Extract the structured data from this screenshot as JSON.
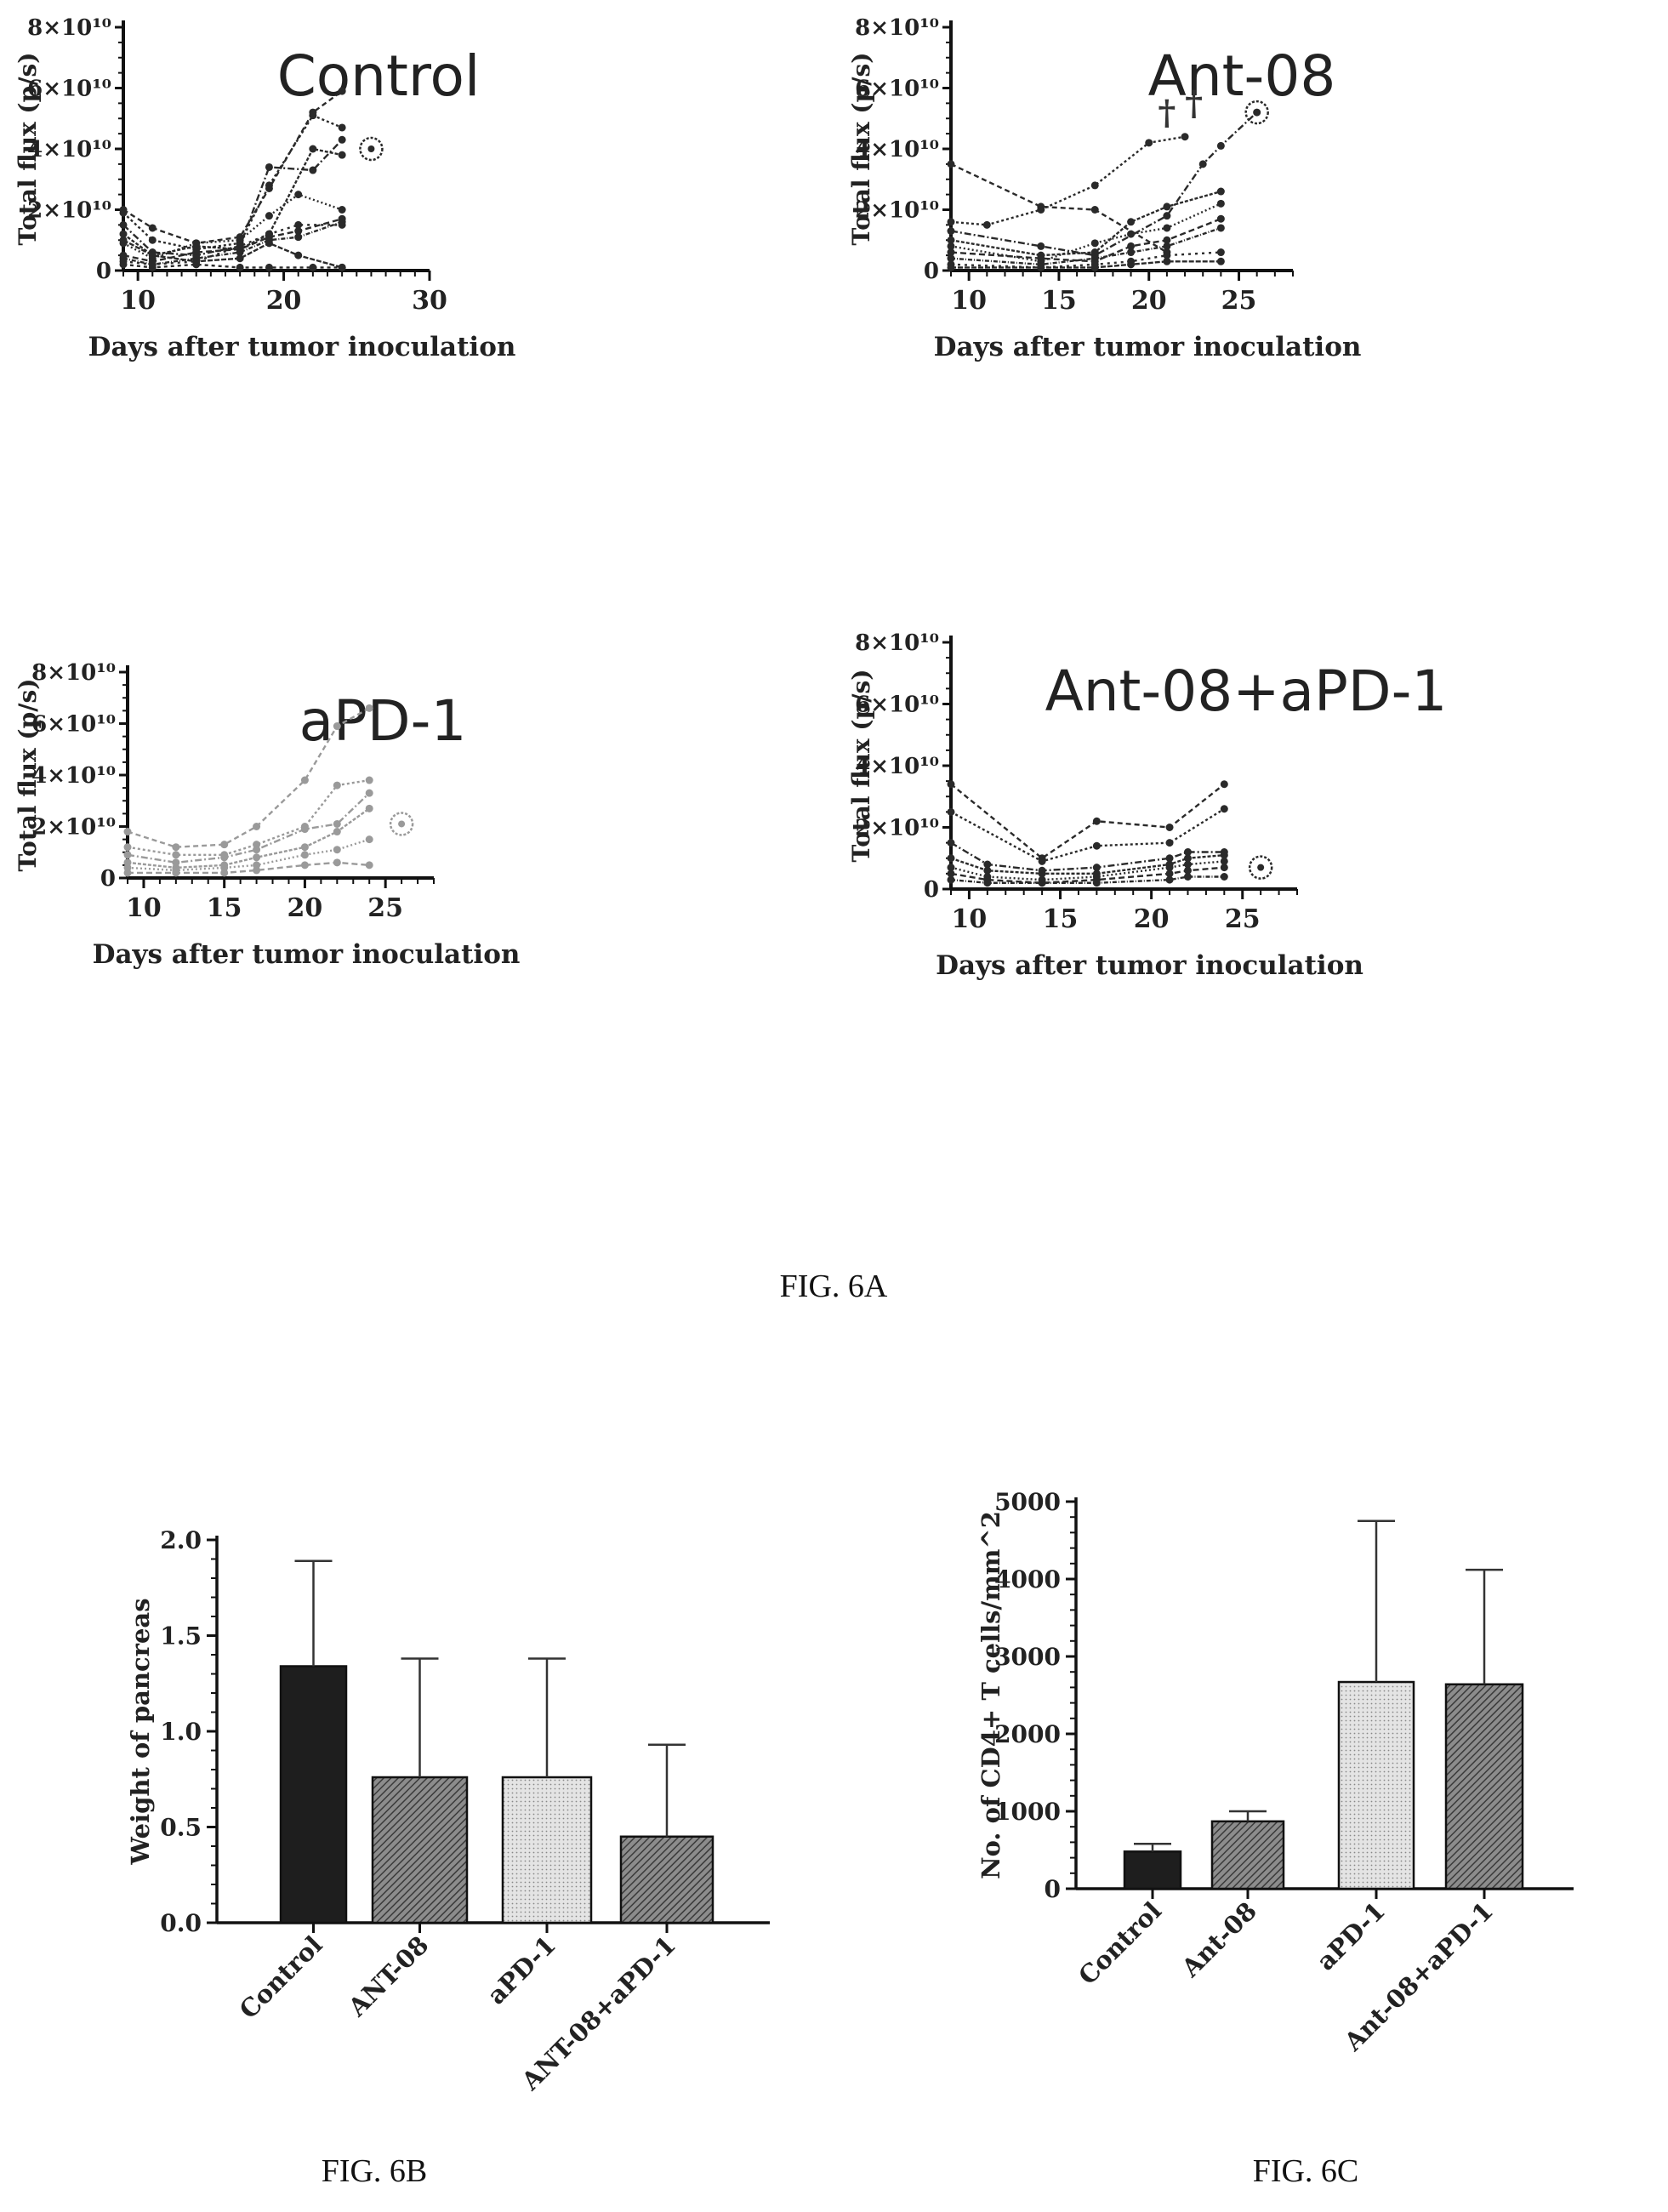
{
  "figure_captions": {
    "fig6a": "FIG. 6A",
    "fig6b": "FIG. 6B",
    "fig6c": "FIG. 6C"
  },
  "chart_data": [
    {
      "id": "control",
      "type": "line",
      "title": "Control",
      "xlabel": "Days after tumor inoculation",
      "ylabel": "Total flux (p/s)",
      "xlim": [
        9,
        30
      ],
      "ylim": [
        0,
        80000000000.0
      ],
      "xticks": [
        10,
        20,
        30
      ],
      "yticks": [
        {
          "v": 0,
          "label": "0"
        },
        {
          "v": 20000000000.0,
          "label": "2×10¹⁰"
        },
        {
          "v": 40000000000.0,
          "label": "4×10¹⁰"
        },
        {
          "v": 60000000000.0,
          "label": "6×10¹⁰"
        },
        {
          "v": 80000000000.0,
          "label": "8×10¹⁰"
        }
      ],
      "color": "#2a2a2a",
      "series": [
        {
          "x": [
            9,
            11,
            14,
            17,
            19,
            22,
            24
          ],
          "y": [
            20000000000.0,
            14000000000.0,
            9000000000.0,
            11000000000.0,
            27000000000.0,
            52000000000.0,
            59000000000.0
          ]
        },
        {
          "x": [
            9,
            11,
            14,
            17,
            19,
            22,
            24
          ],
          "y": [
            19000000000.0,
            10000000000.0,
            7000000000.0,
            9000000000.0,
            28000000000.0,
            51000000000.0,
            47000000000.0
          ]
        },
        {
          "x": [
            9,
            11,
            14,
            17,
            19,
            22,
            24
          ],
          "y": [
            15000000000.0,
            6000000000.0,
            5000000000.0,
            8000000000.0,
            34000000000.0,
            33000000000.0,
            43000000000.0
          ]
        },
        {
          "x": [
            9,
            11,
            14,
            17,
            19,
            22,
            24
          ],
          "y": [
            12000000000.0,
            5000000000.0,
            8000000000.0,
            7000000000.0,
            12000000000.0,
            40000000000.0,
            38000000000.0
          ]
        },
        {
          "x": [
            9,
            11,
            14,
            17,
            19,
            21,
            24
          ],
          "y": [
            9000000000.0,
            4000000000.0,
            9000000000.0,
            10000000000.0,
            18000000000.0,
            25000000000.0,
            20000000000.0
          ]
        },
        {
          "x": [
            9,
            11,
            14,
            17,
            19,
            21,
            24
          ],
          "y": [
            5000000000.0,
            3000000000.0,
            6000000000.0,
            7000000000.0,
            11000000000.0,
            13000000000.0,
            17000000000.0
          ]
        },
        {
          "x": [
            9,
            11,
            14,
            17,
            19,
            21,
            24
          ],
          "y": [
            4000000000.0,
            2000000000.0,
            4000000000.0,
            6000000000.0,
            10000000000.0,
            11000000000.0,
            16000000000.0
          ]
        },
        {
          "x": [
            9,
            11,
            14,
            17,
            19,
            21,
            24
          ],
          "y": [
            3000000000.0,
            2000000000.0,
            3000000000.0,
            8000000000.0,
            12000000000.0,
            15000000000.0,
            15000000000.0
          ]
        },
        {
          "x": [
            9,
            11,
            14,
            17,
            19,
            21,
            24
          ],
          "y": [
            10000000000.0,
            5000000000.0,
            3000000000.0,
            4000000000.0,
            9000000000.0,
            5000000000.0,
            1000000000.0
          ]
        },
        {
          "x": [
            9,
            11,
            14,
            17,
            19,
            22,
            24
          ],
          "y": [
            2000000000.0,
            1000000000.0,
            2000000000.0,
            1000000000.0,
            1000000000.0,
            1000000000.0,
            1000000000.0
          ]
        }
      ],
      "dead_marks": [],
      "circled": {
        "x": 26,
        "y": 40000000000.0
      }
    },
    {
      "id": "ant08",
      "type": "line",
      "title": "Ant-08",
      "xlabel": "Days after tumor inoculation",
      "ylabel": "Total flux (p/s)",
      "xlim": [
        9,
        28
      ],
      "ylim": [
        0,
        80000000000.0
      ],
      "xticks": [
        10,
        15,
        20,
        25
      ],
      "yticks": [
        {
          "v": 0,
          "label": "0"
        },
        {
          "v": 20000000000.0,
          "label": "2×10¹⁰"
        },
        {
          "v": 40000000000.0,
          "label": "4×10¹⁰"
        },
        {
          "v": 60000000000.0,
          "label": "6×10¹⁰"
        },
        {
          "v": 80000000000.0,
          "label": "8×10¹⁰"
        }
      ],
      "color": "#2a2a2a",
      "series": [
        {
          "x": [
            9,
            14,
            17,
            21
          ],
          "y": [
            35000000000.0,
            21000000000.0,
            20000000000.0,
            6000000000.0
          ]
        },
        {
          "x": [
            9,
            11,
            14,
            17,
            20,
            22
          ],
          "y": [
            16000000000.0,
            15000000000.0,
            20000000000.0,
            28000000000.0,
            42000000000.0,
            44000000000.0
          ]
        },
        {
          "x": [
            9,
            14,
            17,
            21,
            23,
            24,
            26
          ],
          "y": [
            13000000000.0,
            8000000000.0,
            5000000000.0,
            18000000000.0,
            35000000000.0,
            41000000000.0,
            52000000000.0
          ]
        },
        {
          "x": [
            9,
            14,
            17,
            19,
            21,
            24
          ],
          "y": [
            10000000000.0,
            5000000000.0,
            6000000000.0,
            16000000000.0,
            21000000000.0,
            26000000000.0
          ]
        },
        {
          "x": [
            9,
            14,
            17,
            19,
            21,
            24
          ],
          "y": [
            8000000000.0,
            3000000000.0,
            9000000000.0,
            12000000000.0,
            14000000000.0,
            22000000000.0
          ]
        },
        {
          "x": [
            9,
            14,
            17,
            19,
            21,
            24
          ],
          "y": [
            6000000000.0,
            4000000000.0,
            3000000000.0,
            8000000000.0,
            10000000000.0,
            17000000000.0
          ]
        },
        {
          "x": [
            9,
            14,
            17,
            19,
            21,
            24
          ],
          "y": [
            4000000000.0,
            2000000000.0,
            4000000000.0,
            6000000000.0,
            8000000000.0,
            14000000000.0
          ]
        },
        {
          "x": [
            9,
            14,
            17,
            19,
            21,
            24
          ],
          "y": [
            2000000000.0,
            1000000000.0,
            2000000000.0,
            3000000000.0,
            5000000000.0,
            6000000000.0
          ]
        },
        {
          "x": [
            9,
            14,
            17,
            19,
            21,
            24
          ],
          "y": [
            1000000000.0,
            1000000000.0,
            1000000000.0,
            2000000000.0,
            3000000000.0,
            3000000000.0
          ]
        }
      ],
      "dead_marks": [
        {
          "x": 21,
          "y": 42000000000.0
        },
        {
          "x": 22.5,
          "y": 45000000000.0
        }
      ],
      "circled": {
        "x": 26,
        "y": 52000000000.0
      }
    },
    {
      "id": "apd1",
      "type": "line",
      "title": "aPD-1",
      "xlabel": "Days after tumor inoculation",
      "ylabel": "Total flux (p/s)",
      "xlim": [
        9,
        28
      ],
      "ylim": [
        0,
        80000000000.0
      ],
      "xticks": [
        10,
        15,
        20,
        25
      ],
      "yticks": [
        {
          "v": 0,
          "label": "0"
        },
        {
          "v": 20000000000.0,
          "label": "2×10¹⁰"
        },
        {
          "v": 40000000000.0,
          "label": "4×10¹⁰"
        },
        {
          "v": 60000000000.0,
          "label": "6×10¹⁰"
        },
        {
          "v": 80000000000.0,
          "label": "8×10¹⁰"
        }
      ],
      "color": "#9a9a9a",
      "series": [
        {
          "x": [
            9,
            12,
            15,
            17,
            20,
            22,
            24
          ],
          "y": [
            18000000000.0,
            12000000000.0,
            13000000000.0,
            20000000000.0,
            38000000000.0,
            59000000000.0,
            66000000000.0
          ]
        },
        {
          "x": [
            9,
            12,
            15,
            17,
            20,
            22,
            24
          ],
          "y": [
            12000000000.0,
            9000000000.0,
            9000000000.0,
            13000000000.0,
            20000000000.0,
            36000000000.0,
            38000000000.0
          ]
        },
        {
          "x": [
            9,
            12,
            15,
            17,
            20,
            22,
            24
          ],
          "y": [
            9000000000.0,
            6000000000.0,
            8000000000.0,
            11000000000.0,
            19000000000.0,
            21000000000.0,
            33000000000.0
          ]
        },
        {
          "x": [
            9,
            12,
            15,
            17,
            20,
            22,
            24
          ],
          "y": [
            6000000000.0,
            4000000000.0,
            5000000000.0,
            8000000000.0,
            12000000000.0,
            18000000000.0,
            27000000000.0
          ]
        },
        {
          "x": [
            9,
            12,
            15,
            17,
            20,
            22,
            24
          ],
          "y": [
            4000000000.0,
            3000000000.0,
            4000000000.0,
            5000000000.0,
            9000000000.0,
            11000000000.0,
            15000000000.0
          ]
        },
        {
          "x": [
            9,
            12,
            15,
            17,
            20,
            22,
            24
          ],
          "y": [
            2000000000.0,
            2000000000.0,
            2000000000.0,
            3000000000.0,
            5000000000.0,
            6000000000.0,
            5000000000.0
          ]
        }
      ],
      "dead_marks": [],
      "circled": {
        "x": 26,
        "y": 21000000000.0
      }
    },
    {
      "id": "combo",
      "type": "line",
      "title": "Ant-08+aPD-1",
      "xlabel": "Days after tumor inoculation",
      "ylabel": "Total flux (p/s)",
      "xlim": [
        9,
        28
      ],
      "ylim": [
        0,
        80000000000.0
      ],
      "xticks": [
        10,
        15,
        20,
        25
      ],
      "yticks": [
        {
          "v": 0,
          "label": "0"
        },
        {
          "v": 20000000000.0,
          "label": "2×10¹⁰"
        },
        {
          "v": 40000000000.0,
          "label": "4×10¹⁰"
        },
        {
          "v": 60000000000.0,
          "label": "6×10¹⁰"
        },
        {
          "v": 80000000000.0,
          "label": "8×10¹⁰"
        }
      ],
      "color": "#2a2a2a",
      "series": [
        {
          "x": [
            9,
            14,
            17,
            21,
            24
          ],
          "y": [
            34000000000.0,
            10000000000.0,
            22000000000.0,
            20000000000.0,
            34000000000.0
          ]
        },
        {
          "x": [
            9,
            14,
            17,
            21,
            24
          ],
          "y": [
            25000000000.0,
            9000000000.0,
            14000000000.0,
            15000000000.0,
            26000000000.0
          ]
        },
        {
          "x": [
            9,
            11,
            14,
            17,
            21,
            22,
            24
          ],
          "y": [
            15000000000.0,
            8000000000.0,
            6000000000.0,
            7000000000.0,
            10000000000.0,
            12000000000.0,
            12000000000.0
          ]
        },
        {
          "x": [
            9,
            11,
            14,
            17,
            21,
            22,
            24
          ],
          "y": [
            10000000000.0,
            6000000000.0,
            5000000000.0,
            5000000000.0,
            8000000000.0,
            10000000000.0,
            11000000000.0
          ]
        },
        {
          "x": [
            9,
            11,
            14,
            17,
            21,
            22,
            24
          ],
          "y": [
            7000000000.0,
            4000000000.0,
            3000000000.0,
            4000000000.0,
            7000000000.0,
            8000000000.0,
            9000000000.0
          ]
        },
        {
          "x": [
            9,
            11,
            14,
            17,
            21,
            22,
            24
          ],
          "y": [
            5000000000.0,
            3000000000.0,
            2000000000.0,
            3000000000.0,
            5000000000.0,
            6000000000.0,
            7000000000.0
          ]
        },
        {
          "x": [
            9,
            11,
            14,
            17,
            21,
            22,
            24
          ],
          "y": [
            3000000000.0,
            2000000000.0,
            2000000000.0,
            2000000000.0,
            3000000000.0,
            4000000000.0,
            4000000000.0
          ]
        }
      ],
      "dead_marks": [],
      "circled": {
        "x": 26,
        "y": 7000000000.0
      }
    },
    {
      "id": "pancreas",
      "type": "bar",
      "title": "",
      "xlabel": "",
      "ylabel": "Weight of pancreas",
      "ylim": [
        0,
        2.0
      ],
      "yticks": [
        {
          "v": 0,
          "label": "0.0"
        },
        {
          "v": 0.5,
          "label": "0.5"
        },
        {
          "v": 1.0,
          "label": "1.0"
        },
        {
          "v": 1.5,
          "label": "1.5"
        },
        {
          "v": 2.0,
          "label": "2.0"
        }
      ],
      "categories": [
        "Control",
        "ANT-08",
        "aPD-1",
        "ANT-08+aPD-1"
      ],
      "values": [
        1.34,
        0.76,
        0.76,
        0.45
      ],
      "errors": [
        0.55,
        0.62,
        0.62,
        0.48
      ]
    },
    {
      "id": "cd4",
      "type": "bar",
      "title": "",
      "xlabel": "",
      "ylabel": "No. of CD4+ T cells/mm^2",
      "ylim": [
        0,
        5000
      ],
      "yticks": [
        {
          "v": 0,
          "label": "0"
        },
        {
          "v": 1000,
          "label": "1000"
        },
        {
          "v": 2000,
          "label": "2000"
        },
        {
          "v": 3000,
          "label": "3000"
        },
        {
          "v": 4000,
          "label": "4000"
        },
        {
          "v": 5000,
          "label": "5000"
        }
      ],
      "categories": [
        "Control",
        "Ant-08",
        "aPD-1",
        "Ant-08+aPD-1"
      ],
      "values": [
        480,
        870,
        2670,
        2640
      ],
      "errors": [
        100,
        130,
        2080,
        1480
      ]
    }
  ]
}
